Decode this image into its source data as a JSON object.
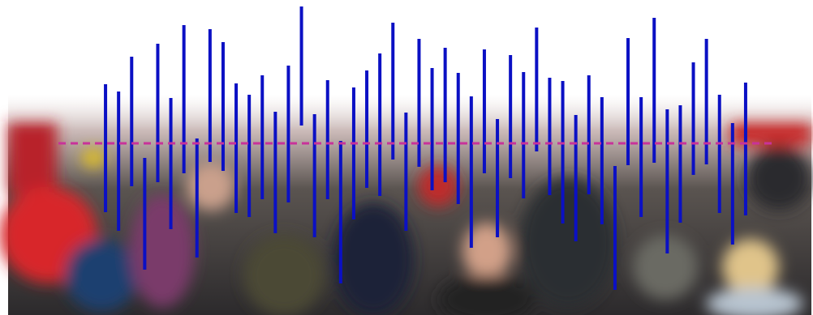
{
  "chart_data": {
    "type": "range-bar",
    "categories": [
      null,
      null,
      null,
      null,
      null,
      null,
      null,
      null,
      null,
      null,
      null,
      null,
      null,
      null,
      null,
      null,
      null,
      null,
      null,
      null,
      null,
      null,
      null,
      null,
      null,
      null,
      null,
      null,
      null,
      null,
      null,
      null,
      null,
      null,
      null,
      null,
      null,
      null,
      null,
      null,
      null,
      null,
      null,
      null,
      null,
      null,
      null,
      null,
      null,
      null
    ],
    "low": [
      127,
      104,
      159,
      56,
      164,
      106,
      175,
      71,
      189,
      178,
      126,
      121,
      143,
      101,
      139,
      234,
      96,
      143,
      39,
      118,
      157,
      147,
      192,
      104,
      183,
      154,
      164,
      137,
      83,
      175,
      96,
      169,
      144,
      202,
      148,
      113,
      91,
      149,
      112,
      31,
      185,
      121,
      188,
      76,
      114,
      173,
      186,
      126,
      87,
      123
    ],
    "high": [
      285,
      276,
      319,
      194,
      335,
      268,
      358,
      218,
      353,
      337,
      286,
      272,
      296,
      251,
      308,
      381,
      248,
      290,
      215,
      281,
      302,
      323,
      361,
      250,
      341,
      305,
      330,
      299,
      270,
      328,
      242,
      321,
      300,
      355,
      293,
      289,
      247,
      296,
      269,
      184,
      342,
      269,
      367,
      254,
      259,
      312,
      341,
      272,
      237,
      287
    ],
    "color": "#0b10c4",
    "reference_line": 212,
    "reference_color": "#c8329a",
    "ylim": [
      0,
      389
    ]
  }
}
